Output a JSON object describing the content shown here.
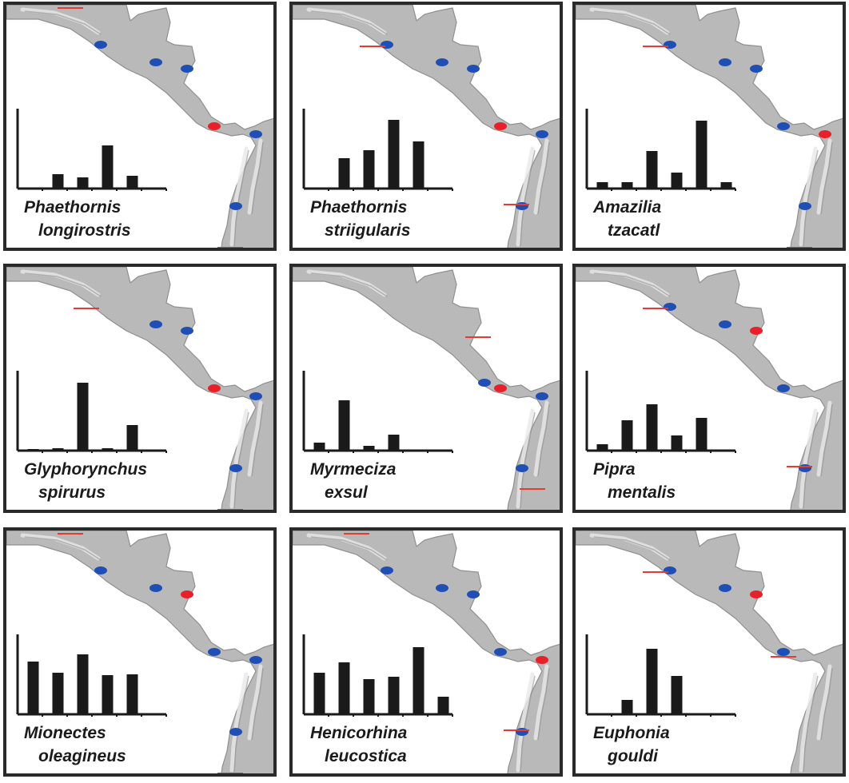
{
  "colors": {
    "land": "#b9b9b9",
    "land_dark": "#8f8f8f",
    "ridge": "#e8e8e8",
    "bar": "#1a1a1a",
    "site_blue": "#1f4fb4",
    "site_red": "#e8202a",
    "range_limit": "#e83a30"
  },
  "chart_data": [
    {
      "type": "bar",
      "species_line1": "Phaethornis",
      "species_line2": "longirostris",
      "values": [
        0,
        0.18,
        0.14,
        0.54,
        0.16,
        0
      ],
      "ylim": [
        0,
        1
      ],
      "sites": [
        {
          "location": "mexico",
          "status": "blue"
        },
        {
          "location": "yucatan",
          "status": "blue"
        },
        {
          "location": "honduras",
          "status": "blue"
        },
        {
          "location": "panama",
          "status": "red"
        },
        {
          "location": "colombia",
          "status": "blue"
        },
        {
          "location": "ecuador",
          "status": "blue"
        }
      ],
      "range_limits": [
        "north_mexico",
        "south_peru"
      ]
    },
    {
      "type": "bar",
      "species_line1": "Phaethornis",
      "species_line2": "striigularis",
      "values": [
        0,
        0.38,
        0.48,
        0.86,
        0.59,
        0
      ],
      "ylim": [
        0,
        1
      ],
      "sites": [
        {
          "location": "mexico",
          "status": "blue"
        },
        {
          "location": "yucatan",
          "status": "blue"
        },
        {
          "location": "honduras",
          "status": "blue"
        },
        {
          "location": "panama",
          "status": "red"
        },
        {
          "location": "colombia",
          "status": "blue"
        },
        {
          "location": "ecuador",
          "status": "blue"
        }
      ],
      "range_limits": [
        "oaxaca",
        "ecuador"
      ]
    },
    {
      "type": "bar",
      "species_line1": "Amazilia",
      "species_line2": "tzacatl",
      "values": [
        0.08,
        0.08,
        0.47,
        0.2,
        0.85,
        0.08
      ],
      "ylim": [
        0,
        1
      ],
      "sites": [
        {
          "location": "mexico",
          "status": "blue"
        },
        {
          "location": "yucatan",
          "status": "blue"
        },
        {
          "location": "honduras",
          "status": "blue"
        },
        {
          "location": "panama",
          "status": "blue"
        },
        {
          "location": "colombia",
          "status": "red"
        },
        {
          "location": "ecuador",
          "status": "blue"
        }
      ],
      "range_limits": [
        "oaxaca",
        "south_peru"
      ]
    },
    {
      "type": "bar",
      "species_line1": "Glyphorynchus",
      "species_line2": "spirurus",
      "values": [
        0.02,
        0.03,
        0.85,
        0.03,
        0.32,
        0
      ],
      "ylim": [
        0,
        1
      ],
      "sites": [
        {
          "location": "yucatan",
          "status": "blue"
        },
        {
          "location": "honduras",
          "status": "blue"
        },
        {
          "location": "panama",
          "status": "red"
        },
        {
          "location": "colombia",
          "status": "blue"
        },
        {
          "location": "ecuador",
          "status": "blue"
        }
      ],
      "range_limits": [
        "oaxaca",
        "south_peru"
      ]
    },
    {
      "type": "bar",
      "species_line1": "Myrmeciza",
      "species_line2": "exsul",
      "values": [
        0.1,
        0.63,
        0.06,
        0.2,
        0,
        0
      ],
      "ylim": [
        0,
        1
      ],
      "sites": [
        {
          "location": "costa_rica",
          "status": "blue"
        },
        {
          "location": "panama",
          "status": "red"
        },
        {
          "location": "colombia",
          "status": "blue"
        },
        {
          "location": "ecuador",
          "status": "blue"
        }
      ],
      "range_limits": [
        "honduras",
        "south_ecuador"
      ]
    },
    {
      "type": "bar",
      "species_line1": "Pipra",
      "species_line2": "mentalis",
      "values": [
        0.08,
        0.38,
        0.58,
        0.19,
        0.41,
        0
      ],
      "ylim": [
        0,
        1
      ],
      "sites": [
        {
          "location": "mexico",
          "status": "blue"
        },
        {
          "location": "yucatan",
          "status": "blue"
        },
        {
          "location": "honduras",
          "status": "red"
        },
        {
          "location": "panama",
          "status": "blue"
        },
        {
          "location": "ecuador",
          "status": "blue"
        }
      ],
      "range_limits": [
        "oaxaca",
        "ecuador"
      ]
    },
    {
      "type": "bar",
      "species_line1": "Mionectes",
      "species_line2": "oleagineus",
      "values": [
        0.66,
        0.52,
        0.75,
        0.49,
        0.5,
        0
      ],
      "ylim": [
        0,
        1
      ],
      "sites": [
        {
          "location": "mexico",
          "status": "blue"
        },
        {
          "location": "yucatan",
          "status": "blue"
        },
        {
          "location": "honduras",
          "status": "red"
        },
        {
          "location": "panama",
          "status": "blue"
        },
        {
          "location": "colombia",
          "status": "blue"
        },
        {
          "location": "ecuador",
          "status": "blue"
        }
      ],
      "range_limits": [
        "north_mexico",
        "south_peru"
      ]
    },
    {
      "type": "bar",
      "species_line1": "Henicorhina",
      "species_line2": "leucostica",
      "values": [
        0.52,
        0.65,
        0.44,
        0.47,
        0.84,
        0.22
      ],
      "ylim": [
        0,
        1
      ],
      "sites": [
        {
          "location": "mexico",
          "status": "blue"
        },
        {
          "location": "yucatan",
          "status": "blue"
        },
        {
          "location": "honduras",
          "status": "blue"
        },
        {
          "location": "panama",
          "status": "blue"
        },
        {
          "location": "colombia",
          "status": "red"
        },
        {
          "location": "ecuador",
          "status": "blue"
        }
      ],
      "range_limits": [
        "north_mexico",
        "ecuador"
      ]
    },
    {
      "type": "bar",
      "species_line1": "Euphonia",
      "species_line2": "gouldi",
      "values": [
        0,
        0.18,
        0.82,
        0.48,
        0,
        0
      ],
      "ylim": [
        0,
        1
      ],
      "sites": [
        {
          "location": "mexico",
          "status": "blue"
        },
        {
          "location": "yucatan",
          "status": "blue"
        },
        {
          "location": "honduras",
          "status": "red"
        },
        {
          "location": "panama",
          "status": "blue"
        }
      ],
      "range_limits": [
        "oaxaca",
        "panama"
      ]
    }
  ]
}
